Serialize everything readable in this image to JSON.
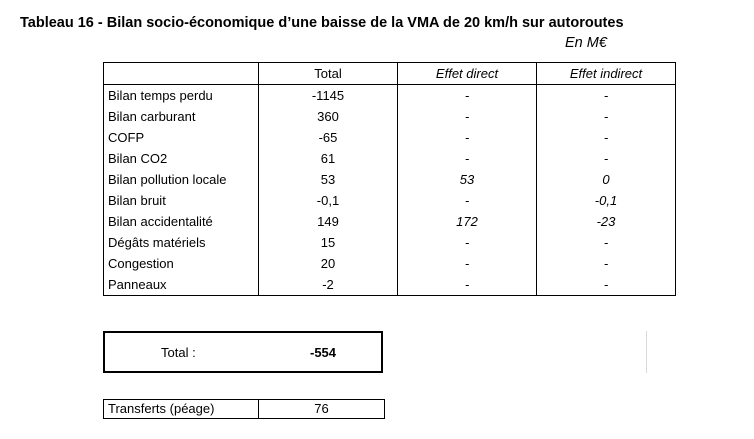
{
  "title": "Tableau 16 - Bilan socio-économique d’une baisse de la VMA de 20 km/h sur autoroutes",
  "unit": "En M€",
  "table": {
    "headers": [
      "",
      "Total",
      "Effet direct",
      "Effet indirect"
    ],
    "rows": [
      {
        "label": "Bilan temps perdu",
        "total": "-1145",
        "direct": "-",
        "indirect": "-"
      },
      {
        "label": "Bilan carburant",
        "total": "360",
        "direct": "-",
        "indirect": "-"
      },
      {
        "label": "COFP",
        "total": "-65",
        "direct": "-",
        "indirect": "-"
      },
      {
        "label": "Bilan CO2",
        "total": "61",
        "direct": "-",
        "indirect": "-"
      },
      {
        "label": "Bilan pollution locale",
        "total": "53",
        "direct": "53",
        "indirect": "0"
      },
      {
        "label": "Bilan bruit",
        "total": "-0,1",
        "direct": "-",
        "indirect": "-0,1"
      },
      {
        "label": "Bilan accidentalité",
        "total": "149",
        "direct": "172",
        "indirect": "-23"
      },
      {
        "label": "Dégâts matériels",
        "total": "15",
        "direct": "-",
        "indirect": "-"
      },
      {
        "label": "Congestion",
        "total": "20",
        "direct": "-",
        "indirect": "-"
      },
      {
        "label": "Panneaux",
        "total": "-2",
        "direct": "-",
        "indirect": "-"
      }
    ]
  },
  "total": {
    "label": "Total :",
    "value": "-554"
  },
  "transfers": {
    "label": "Transferts (péage)",
    "value": "76"
  }
}
